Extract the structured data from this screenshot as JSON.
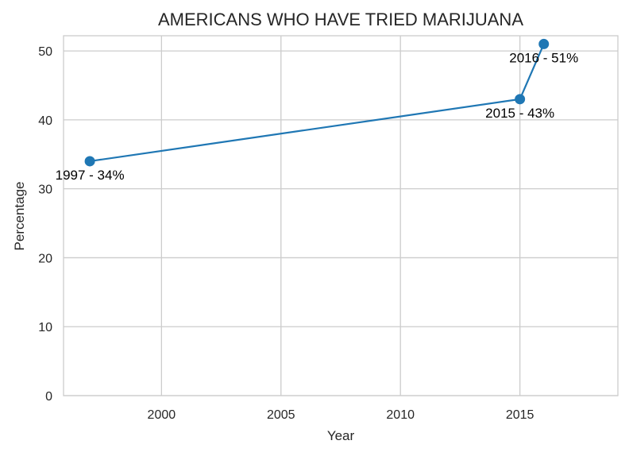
{
  "chart_data": {
    "type": "line",
    "title": "AMERICANS WHO HAVE TRIED MARIJUANA",
    "xlabel": "Year",
    "ylabel": "Percentage",
    "x": [
      1997,
      2015,
      2016
    ],
    "values": [
      34,
      43,
      51
    ],
    "annotations": [
      "1997 - 34%",
      "2015 - 43%",
      "2016 - 51%"
    ],
    "xticks": [
      2000,
      2005,
      2010,
      2015
    ],
    "yticks": [
      0,
      10,
      20,
      30,
      40,
      50
    ],
    "xlim": [
      1995.9,
      2019.1
    ],
    "ylim": [
      0,
      52.2
    ],
    "grid": true,
    "color": "#1f77b4"
  }
}
